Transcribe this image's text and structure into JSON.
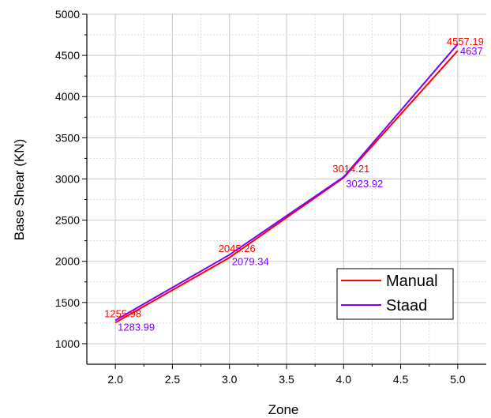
{
  "chart_data": {
    "type": "line",
    "title": "",
    "xlabel": "Zone",
    "ylabel": "Base Shear (KN)",
    "xlim": [
      1.75,
      5.25
    ],
    "ylim": [
      750,
      5000
    ],
    "x": [
      2.0,
      3.0,
      4.0,
      5.0
    ],
    "xticks": [
      "2.0",
      "2.5",
      "3.0",
      "3.5",
      "4.0",
      "4.5",
      "5.0"
    ],
    "yticks": [
      "1000",
      "1500",
      "2000",
      "2500",
      "3000",
      "3500",
      "4000",
      "4500",
      "5000"
    ],
    "grid": true,
    "legend_position": "bottom-right",
    "series": [
      {
        "name": "Manual",
        "color": "#ff0000",
        "values": [
          1255.98,
          2045.26,
          3014.21,
          4557.19
        ],
        "labels": [
          "1255.98",
          "2045.26",
          "3014.21",
          "4557.19"
        ]
      },
      {
        "name": "Staad",
        "color": "#7f00ff",
        "values": [
          1283.99,
          2079.34,
          3023.92,
          4637
        ],
        "labels": [
          "1283.99",
          "2079.34",
          "3023.92",
          "4637"
        ]
      }
    ]
  }
}
